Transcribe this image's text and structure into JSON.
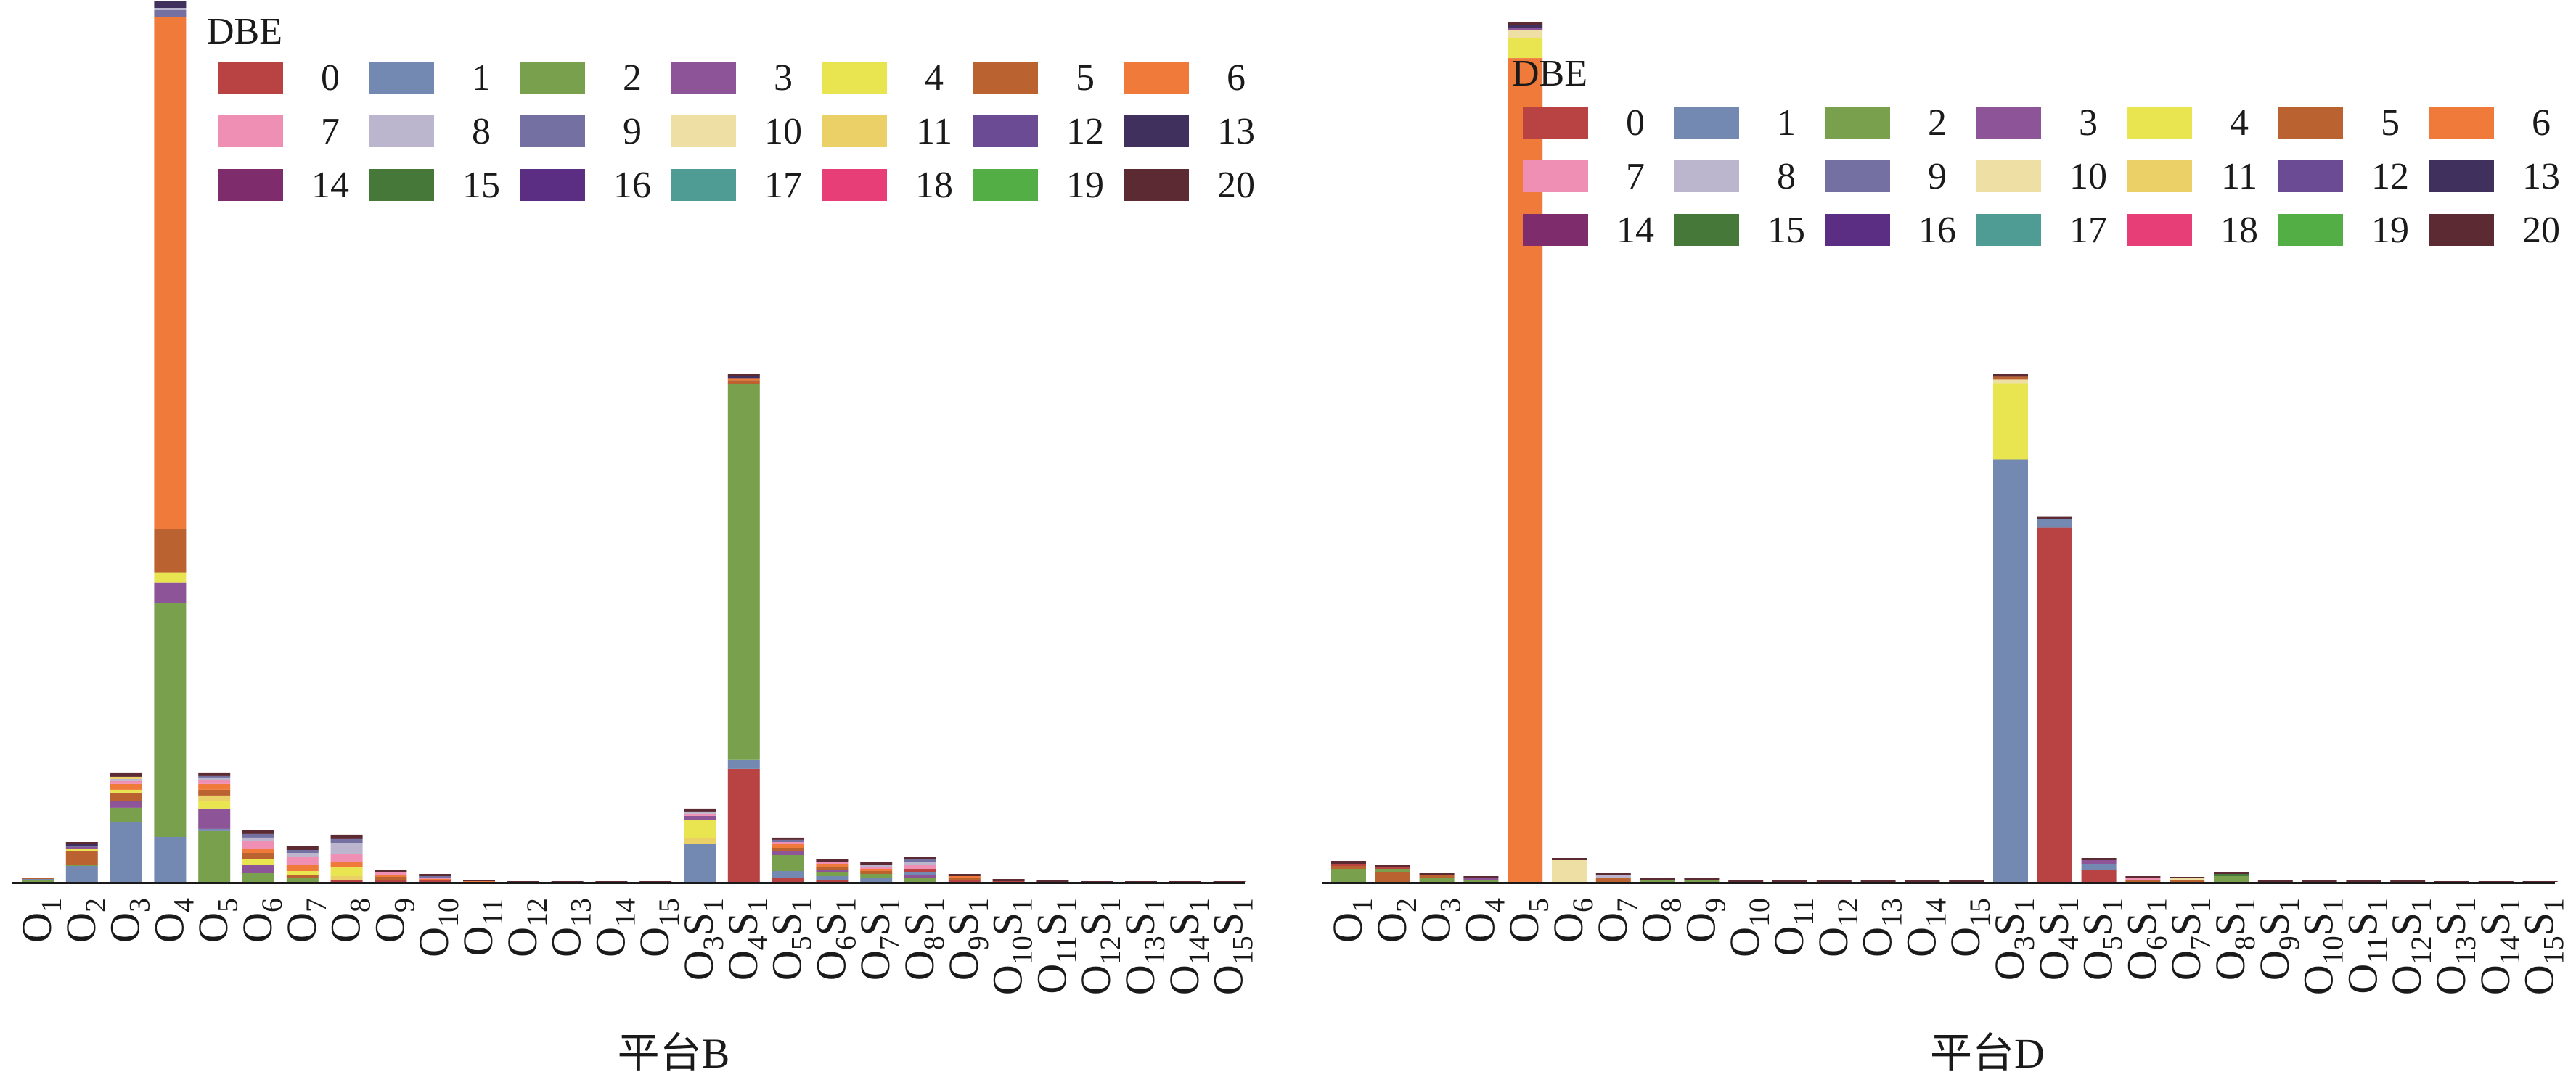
{
  "legend_title": "DBE",
  "dbe_levels": [
    {
      "label": "0",
      "color": "#B94243"
    },
    {
      "label": "1",
      "color": "#7489B2"
    },
    {
      "label": "2",
      "color": "#79A04C"
    },
    {
      "label": "3",
      "color": "#8D5497"
    },
    {
      "label": "4",
      "color": "#E8E551"
    },
    {
      "label": "5",
      "color": "#BA6230"
    },
    {
      "label": "6",
      "color": "#EF7A3A"
    },
    {
      "label": "7",
      "color": "#EF8FB3"
    },
    {
      "label": "8",
      "color": "#BBB5CE"
    },
    {
      "label": "9",
      "color": "#7470A2"
    },
    {
      "label": "10",
      "color": "#EEDFA4"
    },
    {
      "label": "11",
      "color": "#EAD066"
    },
    {
      "label": "12",
      "color": "#6B4B94"
    },
    {
      "label": "13",
      "color": "#40305E"
    },
    {
      "label": "14",
      "color": "#7E2C6B"
    },
    {
      "label": "15",
      "color": "#46783A"
    },
    {
      "label": "16",
      "color": "#5B2D83"
    },
    {
      "label": "17",
      "color": "#4E9C93"
    },
    {
      "label": "18",
      "color": "#E83E78"
    },
    {
      "label": "19",
      "color": "#52AE45"
    },
    {
      "label": "20",
      "color": "#5B2A33"
    }
  ],
  "chart_data": [
    {
      "type": "bar",
      "stacked": true,
      "xlabel": "平台B",
      "ylabel": "",
      "ylim": [
        0,
        1215
      ],
      "categories": [
        {
          "base": "O",
          "o": "1"
        },
        {
          "base": "O",
          "o": "2"
        },
        {
          "base": "O",
          "o": "3"
        },
        {
          "base": "O",
          "o": "4"
        },
        {
          "base": "O",
          "o": "5"
        },
        {
          "base": "O",
          "o": "6"
        },
        {
          "base": "O",
          "o": "7"
        },
        {
          "base": "O",
          "o": "8"
        },
        {
          "base": "O",
          "o": "9"
        },
        {
          "base": "O",
          "o": "10"
        },
        {
          "base": "O",
          "o": "11"
        },
        {
          "base": "O",
          "o": "12"
        },
        {
          "base": "O",
          "o": "13"
        },
        {
          "base": "O",
          "o": "14"
        },
        {
          "base": "O",
          "o": "15"
        },
        {
          "base": "O",
          "o": "3",
          "s": "1"
        },
        {
          "base": "O",
          "o": "4",
          "s": "1"
        },
        {
          "base": "O",
          "o": "5",
          "s": "1"
        },
        {
          "base": "O",
          "o": "6",
          "s": "1"
        },
        {
          "base": "O",
          "o": "7",
          "s": "1"
        },
        {
          "base": "O",
          "o": "8",
          "s": "1"
        },
        {
          "base": "O",
          "o": "9",
          "s": "1"
        },
        {
          "base": "O",
          "o": "10",
          "s": "1"
        },
        {
          "base": "O",
          "o": "11",
          "s": "1"
        },
        {
          "base": "O",
          "o": "12",
          "s": "1"
        },
        {
          "base": "O",
          "o": "13",
          "s": "1"
        },
        {
          "base": "O",
          "o": "14",
          "s": "1"
        },
        {
          "base": "O",
          "o": "15",
          "s": "1"
        }
      ],
      "bars": [
        [
          [
            2,
            2
          ],
          [
            1,
            2
          ],
          [
            5,
            1
          ],
          [
            20,
            1
          ]
        ],
        [
          [
            1,
            22
          ],
          [
            2,
            2
          ],
          [
            5,
            18
          ],
          [
            4,
            4
          ],
          [
            3,
            2
          ],
          [
            9,
            2
          ],
          [
            13,
            2
          ],
          [
            20,
            3
          ]
        ],
        [
          [
            1,
            82
          ],
          [
            2,
            20
          ],
          [
            3,
            9
          ],
          [
            5,
            12
          ],
          [
            4,
            4
          ],
          [
            6,
            8
          ],
          [
            7,
            4
          ],
          [
            8,
            3
          ],
          [
            11,
            3
          ],
          [
            20,
            5
          ]
        ],
        [
          [
            1,
            62
          ],
          [
            2,
            322
          ],
          [
            3,
            28
          ],
          [
            4,
            14
          ],
          [
            5,
            60
          ],
          [
            6,
            706
          ],
          [
            9,
            9
          ],
          [
            8,
            3
          ],
          [
            13,
            10
          ]
        ],
        [
          [
            2,
            70
          ],
          [
            1,
            3
          ],
          [
            3,
            28
          ],
          [
            4,
            10
          ],
          [
            11,
            8
          ],
          [
            5,
            8
          ],
          [
            6,
            8
          ],
          [
            7,
            5
          ],
          [
            8,
            3
          ],
          [
            9,
            3
          ],
          [
            20,
            4
          ]
        ],
        [
          [
            2,
            12
          ],
          [
            3,
            12
          ],
          [
            4,
            8
          ],
          [
            5,
            8
          ],
          [
            6,
            6
          ],
          [
            7,
            10
          ],
          [
            8,
            5
          ],
          [
            9,
            5
          ],
          [
            20,
            5
          ]
        ],
        [
          [
            2,
            5
          ],
          [
            5,
            5
          ],
          [
            4,
            5
          ],
          [
            6,
            8
          ],
          [
            7,
            12
          ],
          [
            8,
            5
          ],
          [
            9,
            4
          ],
          [
            20,
            5
          ]
        ],
        [
          [
            0,
            3
          ],
          [
            11,
            5
          ],
          [
            4,
            12
          ],
          [
            6,
            8
          ],
          [
            7,
            10
          ],
          [
            8,
            15
          ],
          [
            9,
            6
          ],
          [
            20,
            6
          ]
        ],
        [
          [
            0,
            3
          ],
          [
            5,
            4
          ],
          [
            6,
            3
          ],
          [
            7,
            3
          ],
          [
            20,
            3
          ]
        ],
        [
          [
            0,
            2
          ],
          [
            6,
            2
          ],
          [
            7,
            2
          ],
          [
            9,
            2
          ],
          [
            20,
            3
          ]
        ],
        [
          [
            6,
            1
          ],
          [
            20,
            2
          ]
        ],
        [
          [
            20,
            1
          ]
        ],
        [
          [
            20,
            1
          ]
        ],
        [
          [
            20,
            1
          ]
        ],
        [
          [
            20,
            1
          ]
        ],
        [
          [
            1,
            52
          ],
          [
            11,
            8
          ],
          [
            4,
            25
          ],
          [
            3,
            6
          ],
          [
            7,
            3
          ],
          [
            8,
            3
          ],
          [
            20,
            4
          ]
        ],
        [
          [
            0,
            156
          ],
          [
            1,
            12
          ],
          [
            2,
            518
          ],
          [
            5,
            5
          ],
          [
            6,
            3
          ],
          [
            13,
            3
          ],
          [
            20,
            3
          ]
        ],
        [
          [
            0,
            5
          ],
          [
            1,
            10
          ],
          [
            2,
            22
          ],
          [
            3,
            5
          ],
          [
            5,
            5
          ],
          [
            6,
            5
          ],
          [
            7,
            3
          ],
          [
            9,
            3
          ],
          [
            20,
            3
          ]
        ],
        [
          [
            0,
            3
          ],
          [
            1,
            5
          ],
          [
            2,
            5
          ],
          [
            3,
            4
          ],
          [
            5,
            4
          ],
          [
            6,
            4
          ],
          [
            7,
            3
          ],
          [
            20,
            3
          ]
        ],
        [
          [
            1,
            5
          ],
          [
            2,
            6
          ],
          [
            5,
            4
          ],
          [
            6,
            3
          ],
          [
            7,
            3
          ],
          [
            8,
            3
          ],
          [
            20,
            4
          ]
        ],
        [
          [
            2,
            5
          ],
          [
            3,
            5
          ],
          [
            1,
            4
          ],
          [
            0,
            4
          ],
          [
            7,
            6
          ],
          [
            8,
            4
          ],
          [
            9,
            3
          ],
          [
            20,
            3
          ]
        ],
        [
          [
            0,
            2
          ],
          [
            5,
            3
          ],
          [
            6,
            3
          ],
          [
            20,
            3
          ]
        ],
        [
          [
            0,
            1
          ],
          [
            20,
            3
          ]
        ],
        [
          [
            20,
            2
          ]
        ],
        [
          [
            20,
            1
          ]
        ],
        [
          [
            20,
            1
          ]
        ],
        [
          [
            20,
            1
          ]
        ],
        [
          [
            20,
            1
          ]
        ]
      ]
    },
    {
      "type": "bar",
      "stacked": true,
      "xlabel": "平台D",
      "ylabel": "",
      "ylim": [
        0,
        1215
      ],
      "categories": [
        {
          "base": "O",
          "o": "1"
        },
        {
          "base": "O",
          "o": "2"
        },
        {
          "base": "O",
          "o": "3"
        },
        {
          "base": "O",
          "o": "4"
        },
        {
          "base": "O",
          "o": "5"
        },
        {
          "base": "O",
          "o": "6"
        },
        {
          "base": "O",
          "o": "7"
        },
        {
          "base": "O",
          "o": "8"
        },
        {
          "base": "O",
          "o": "9"
        },
        {
          "base": "O",
          "o": "10"
        },
        {
          "base": "O",
          "o": "11"
        },
        {
          "base": "O",
          "o": "12"
        },
        {
          "base": "O",
          "o": "13"
        },
        {
          "base": "O",
          "o": "14"
        },
        {
          "base": "O",
          "o": "15"
        },
        {
          "base": "O",
          "o": "3",
          "s": "1"
        },
        {
          "base": "O",
          "o": "4",
          "s": "1"
        },
        {
          "base": "O",
          "o": "5",
          "s": "1"
        },
        {
          "base": "O",
          "o": "6",
          "s": "1"
        },
        {
          "base": "O",
          "o": "7",
          "s": "1"
        },
        {
          "base": "O",
          "o": "8",
          "s": "1"
        },
        {
          "base": "O",
          "o": "9",
          "s": "1"
        },
        {
          "base": "O",
          "o": "10",
          "s": "1"
        },
        {
          "base": "O",
          "o": "11",
          "s": "1"
        },
        {
          "base": "O",
          "o": "12",
          "s": "1"
        },
        {
          "base": "O",
          "o": "13",
          "s": "1"
        },
        {
          "base": "O",
          "o": "14",
          "s": "1"
        },
        {
          "base": "O",
          "o": "15",
          "s": "1"
        }
      ],
      "bars": [
        [
          [
            2,
            18
          ],
          [
            5,
            4
          ],
          [
            0,
            3
          ],
          [
            20,
            4
          ]
        ],
        [
          [
            5,
            14
          ],
          [
            2,
            4
          ],
          [
            0,
            3
          ],
          [
            20,
            3
          ]
        ],
        [
          [
            2,
            6
          ],
          [
            5,
            3
          ],
          [
            20,
            3
          ]
        ],
        [
          [
            2,
            3
          ],
          [
            3,
            2
          ],
          [
            20,
            3
          ]
        ],
        [
          [
            6,
            1135
          ],
          [
            4,
            28
          ],
          [
            10,
            10
          ],
          [
            3,
            4
          ],
          [
            13,
            4
          ],
          [
            20,
            4
          ]
        ],
        [
          [
            10,
            30
          ],
          [
            20,
            3
          ]
        ],
        [
          [
            5,
            6
          ],
          [
            8,
            3
          ],
          [
            20,
            3
          ]
        ],
        [
          [
            2,
            3
          ],
          [
            20,
            3
          ]
        ],
        [
          [
            2,
            3
          ],
          [
            20,
            3
          ]
        ],
        [
          [
            20,
            3
          ]
        ],
        [
          [
            20,
            2
          ]
        ],
        [
          [
            20,
            2
          ]
        ],
        [
          [
            20,
            2
          ]
        ],
        [
          [
            20,
            2
          ]
        ],
        [
          [
            20,
            2
          ]
        ],
        [
          [
            1,
            582
          ],
          [
            4,
            105
          ],
          [
            10,
            5
          ],
          [
            5,
            4
          ],
          [
            20,
            4
          ]
        ],
        [
          [
            0,
            488
          ],
          [
            1,
            12
          ],
          [
            20,
            3
          ]
        ],
        [
          [
            0,
            16
          ],
          [
            1,
            9
          ],
          [
            3,
            5
          ],
          [
            20,
            3
          ]
        ],
        [
          [
            5,
            3
          ],
          [
            7,
            2
          ],
          [
            20,
            3
          ]
        ],
        [
          [
            5,
            3
          ],
          [
            10,
            2
          ],
          [
            20,
            2
          ]
        ],
        [
          [
            2,
            8
          ],
          [
            15,
            3
          ],
          [
            20,
            3
          ]
        ],
        [
          [
            20,
            2
          ]
        ],
        [
          [
            20,
            2
          ]
        ],
        [
          [
            20,
            2
          ]
        ],
        [
          [
            20,
            2
          ]
        ],
        [
          [
            20,
            1
          ]
        ],
        [
          [
            20,
            1
          ]
        ],
        [
          [
            20,
            1
          ]
        ]
      ]
    }
  ]
}
